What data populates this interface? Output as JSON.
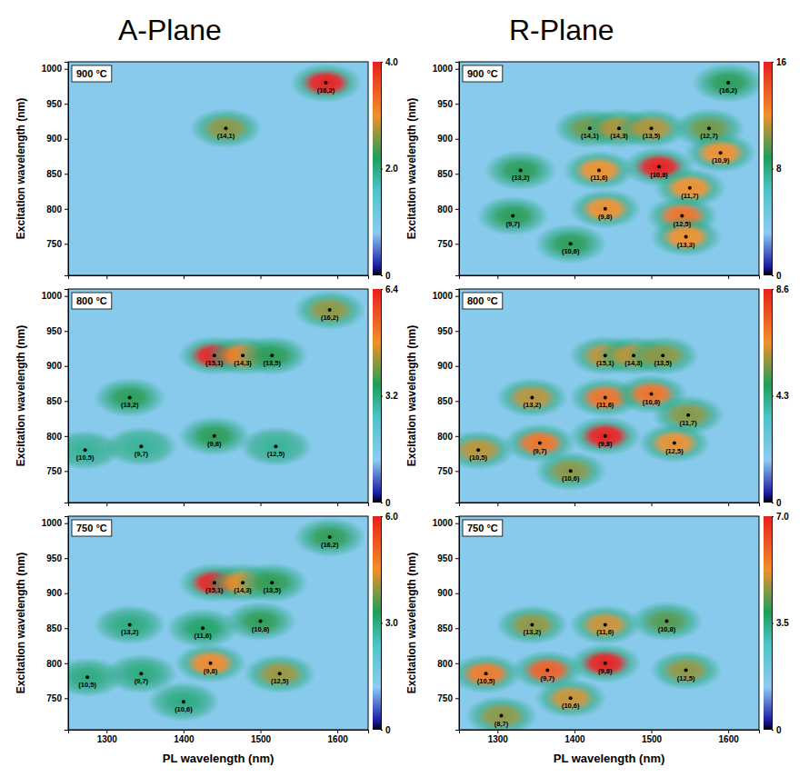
{
  "panel_columns": [
    "A-Plane",
    "R-Plane"
  ],
  "chart_data": [
    {
      "type": "heatmap",
      "title": "900 °C",
      "y_label": "Excitation wavelength (nm)",
      "xlim": [
        1250,
        1640
      ],
      "xticks": [
        1300,
        1400,
        1500,
        1600
      ],
      "ylim": [
        705,
        1010
      ],
      "yticks": [
        750,
        800,
        850,
        900,
        950,
        1000
      ],
      "tick_labels": "y",
      "labels": [
        "(16,2)",
        "(14,1)"
      ],
      "x": [
        1585,
        1455
      ],
      "y": [
        980,
        915
      ],
      "intensity": [
        4.0,
        2.6
      ],
      "colorbar": {
        "range": [
          0,
          4
        ],
        "ticks": [
          0,
          {
            "value": 2,
            "label": "2.0"
          },
          {
            "value": 4,
            "label": "4.0"
          }
        ]
      }
    },
    {
      "type": "heatmap",
      "title": "800 °C",
      "y_label": "Excitation wavelength (nm)",
      "xlim": [
        1250,
        1640
      ],
      "xticks": [
        1300,
        1400,
        1500,
        1600
      ],
      "ylim": [
        705,
        1010
      ],
      "yticks": [
        750,
        800,
        850,
        900,
        950,
        1000
      ],
      "tick_labels": "y",
      "labels": [
        "(16,2)",
        "(15,1)",
        "(14,3)",
        "(13,5)",
        "(13,2)",
        "(10,5)",
        "(9,7)",
        "(9,8)",
        "(12,5)"
      ],
      "x": [
        1590,
        1440,
        1477,
        1515,
        1330,
        1272,
        1345,
        1440,
        1520
      ],
      "y": [
        980,
        915,
        915,
        915,
        855,
        780,
        785,
        800,
        785
      ],
      "intensity": [
        4.2,
        6.4,
        5.0,
        3.6,
        3.6,
        3.0,
        3.0,
        3.6,
        3.0
      ],
      "colorbar": {
        "range": [
          0,
          6.4
        ],
        "ticks": [
          0,
          3.2,
          6.4
        ]
      }
    },
    {
      "type": "heatmap",
      "title": "750 °C",
      "y_label": "Excitation wavelength (nm)",
      "x_label": "PL wavelength (nm)",
      "xlim": [
        1250,
        1640
      ],
      "xticks": [
        1300,
        1400,
        1500,
        1600
      ],
      "ylim": [
        705,
        1010
      ],
      "yticks": [
        750,
        800,
        850,
        900,
        950,
        1000
      ],
      "labels": [
        "(16,2)",
        "(15,1)",
        "(14,3)",
        "(13,5)",
        "(13,2)",
        "(11,6)",
        "(10,8)",
        "(10,5)",
        "(9,7)",
        "(9,8)",
        "(12,5)",
        "(10,6)"
      ],
      "x": [
        1590,
        1440,
        1477,
        1515,
        1330,
        1425,
        1500,
        1275,
        1345,
        1435,
        1525,
        1400
      ],
      "y": [
        980,
        915,
        915,
        915,
        855,
        850,
        860,
        780,
        785,
        800,
        785,
        745
      ],
      "intensity": [
        3.4,
        6.0,
        4.4,
        3.4,
        3.0,
        3.2,
        3.4,
        3.0,
        3.0,
        4.6,
        4.0,
        3.0
      ],
      "colorbar": {
        "range": [
          0,
          6
        ],
        "ticks": [
          0,
          {
            "value": 3,
            "label": "3.0"
          },
          {
            "value": 6,
            "label": "6.0"
          }
        ]
      }
    },
    {
      "type": "heatmap",
      "title": "900 °C",
      "y_label": "Excitation wavelength (nm)",
      "xlim": [
        1250,
        1640
      ],
      "xticks": [
        1300,
        1400,
        1500,
        1600
      ],
      "ylim": [
        705,
        1010
      ],
      "yticks": [
        750,
        800,
        850,
        900,
        950,
        1000
      ],
      "tick_labels": "y",
      "labels": [
        "(16,2)",
        "(14,1)",
        "(14,3)",
        "(13,5)",
        "(12,7)",
        "(13,2)",
        "(11,6)",
        "(10,8)",
        "(10,9)",
        "(11,7)",
        "(9,8)",
        "(9,7)",
        "(12,5)",
        "(13,3)",
        "(10,6)"
      ],
      "x": [
        1600,
        1420,
        1458,
        1500,
        1575,
        1330,
        1432,
        1510,
        1590,
        1550,
        1440,
        1320,
        1540,
        1545,
        1395
      ],
      "y": [
        980,
        915,
        915,
        915,
        915,
        855,
        855,
        860,
        880,
        830,
        800,
        790,
        790,
        760,
        750
      ],
      "intensity": [
        9,
        10,
        11,
        11,
        10,
        9,
        12,
        16,
        12,
        12,
        12,
        9,
        13,
        12,
        9
      ],
      "colorbar": {
        "range": [
          0,
          16
        ],
        "ticks": [
          0,
          8,
          16
        ]
      }
    },
    {
      "type": "heatmap",
      "title": "800 °C",
      "y_label": "Excitation wavelength (nm)",
      "xlim": [
        1250,
        1640
      ],
      "xticks": [
        1300,
        1400,
        1500,
        1600
      ],
      "ylim": [
        705,
        1010
      ],
      "yticks": [
        750,
        800,
        850,
        900,
        950,
        1000
      ],
      "tick_labels": "y",
      "labels": [
        "(15,1)",
        "(14,3)",
        "(13,5)",
        "(13,2)",
        "(11,6)",
        "(10,8)",
        "(11,7)",
        "(9,8)",
        "(9,7)",
        "(12,5)",
        "(10,5)",
        "(10,6)"
      ],
      "x": [
        1440,
        1477,
        1515,
        1345,
        1440,
        1500,
        1548,
        1440,
        1355,
        1530,
        1275,
        1395
      ],
      "y": [
        915,
        915,
        915,
        855,
        855,
        860,
        830,
        800,
        790,
        790,
        780,
        750
      ],
      "intensity": [
        6.0,
        6.0,
        5.6,
        6.0,
        7.0,
        7.0,
        5.6,
        8.6,
        7.0,
        6.4,
        6.0,
        5.6
      ],
      "colorbar": {
        "range": [
          0,
          8.6
        ],
        "ticks": [
          0,
          4.3,
          8.6
        ]
      }
    },
    {
      "type": "heatmap",
      "title": "750 °C",
      "y_label": "Excitation wavelength (nm)",
      "x_label": "PL wavelength (nm)",
      "xlim": [
        1250,
        1640
      ],
      "xticks": [
        1300,
        1400,
        1500,
        1600
      ],
      "ylim": [
        705,
        1010
      ],
      "yticks": [
        750,
        800,
        850,
        900,
        950,
        1000
      ],
      "labels": [
        "(13,2)",
        "(11,6)",
        "(10,8)",
        "(9,8)",
        "(9,7)",
        "(10,5)",
        "(12,5)",
        "(10,6)",
        "(8,7)"
      ],
      "x": [
        1345,
        1440,
        1520,
        1440,
        1365,
        1285,
        1545,
        1395,
        1305
      ],
      "y": [
        855,
        855,
        860,
        800,
        790,
        785,
        790,
        750,
        725
      ],
      "intensity": [
        4.6,
        5.0,
        4.2,
        7.0,
        6.0,
        5.6,
        4.6,
        5.0,
        4.6
      ],
      "colorbar": {
        "range": [
          0,
          7
        ],
        "ticks": [
          0,
          {
            "value": 3.5,
            "label": "3.5"
          },
          {
            "value": 7,
            "label": "7.0"
          }
        ]
      }
    }
  ]
}
